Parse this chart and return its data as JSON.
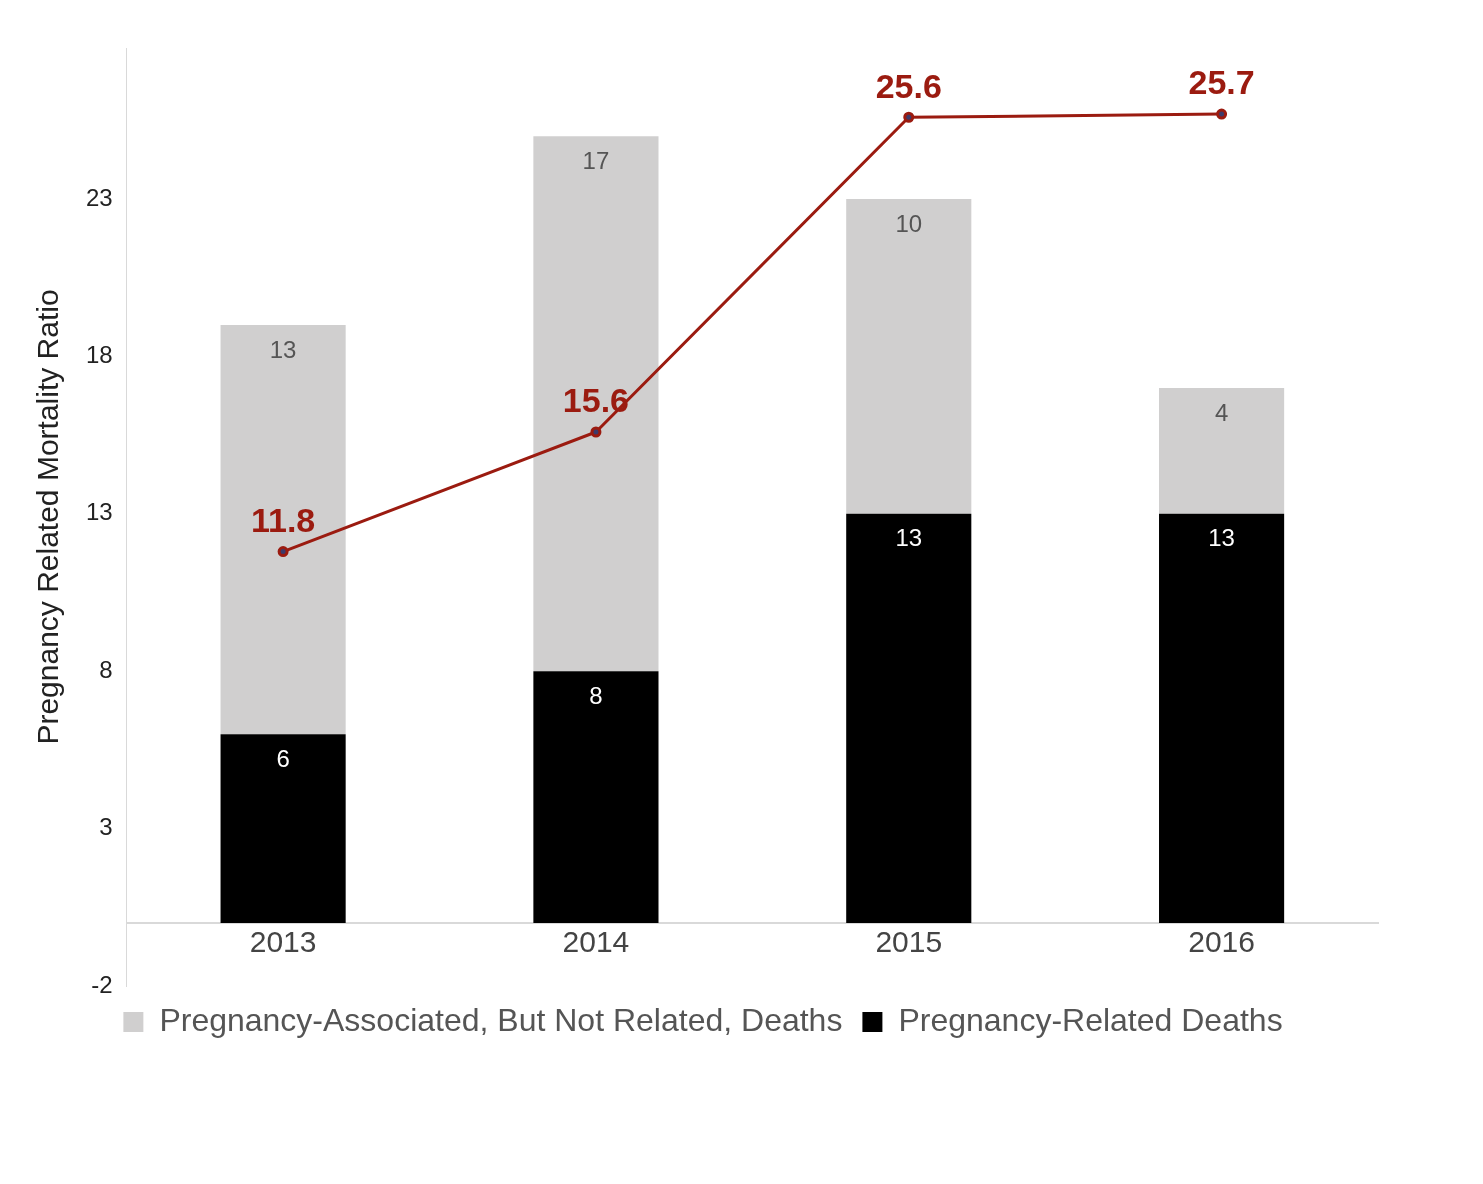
{
  "chart_data": {
    "type": "bar",
    "ylabel": "Pregnancy Related Mortality Ratio",
    "categories": [
      "2013",
      "2014",
      "2015",
      "2016"
    ],
    "stacked": true,
    "data_labels": true,
    "legend": "bottom",
    "grid": false,
    "marker": "circle",
    "ylim": [
      -2,
      27.8
    ],
    "yticks": [
      -2,
      3,
      8,
      13,
      18,
      23
    ],
    "series": [
      {
        "name": "Pregnancy-Related Deaths",
        "color": "#000000",
        "values": [
          6,
          8,
          13,
          13
        ]
      },
      {
        "name": "Pregnancy-Associated, But Not Related, Deaths",
        "color": "#d0cfcf",
        "values": [
          13,
          17,
          10,
          4
        ]
      },
      {
        "type": "line",
        "color": "#9b1b10",
        "values": [
          11.8,
          15.6,
          25.6,
          25.7
        ]
      }
    ]
  }
}
